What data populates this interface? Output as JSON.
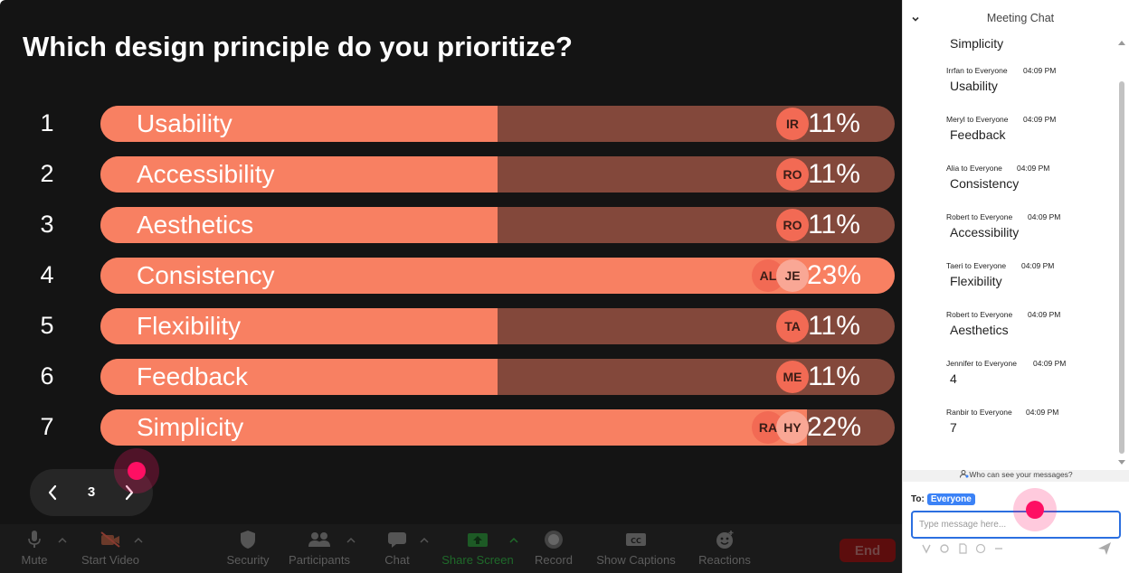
{
  "poll": {
    "question": "Which design principle do you prioritize?",
    "options": [
      {
        "number": "1",
        "label": "Usability",
        "percent": "11%",
        "fill_fraction": 0.5,
        "voters": [
          {
            "initials": "IR",
            "style": "solid"
          }
        ]
      },
      {
        "number": "2",
        "label": "Accessibility",
        "percent": "11%",
        "fill_fraction": 0.5,
        "voters": [
          {
            "initials": "RO",
            "style": "solid"
          }
        ]
      },
      {
        "number": "3",
        "label": "Aesthetics",
        "percent": "11%",
        "fill_fraction": 0.5,
        "voters": [
          {
            "initials": "RO",
            "style": "solid"
          }
        ]
      },
      {
        "number": "4",
        "label": "Consistency",
        "percent": "23%",
        "fill_fraction": 1.0,
        "voters": [
          {
            "initials": "AL",
            "style": "solid"
          },
          {
            "initials": "JE",
            "style": "light"
          }
        ]
      },
      {
        "number": "5",
        "label": "Flexibility",
        "percent": "11%",
        "fill_fraction": 0.5,
        "voters": [
          {
            "initials": "TA",
            "style": "solid"
          }
        ]
      },
      {
        "number": "6",
        "label": "Feedback",
        "percent": "11%",
        "fill_fraction": 0.5,
        "voters": [
          {
            "initials": "ME",
            "style": "solid"
          }
        ]
      },
      {
        "number": "7",
        "label": "Simplicity",
        "percent": "22%",
        "fill_fraction": 0.89,
        "voters": [
          {
            "initials": "RA",
            "style": "solid"
          },
          {
            "initials": "HY",
            "style": "light"
          }
        ]
      }
    ]
  },
  "pager": {
    "page": "3"
  },
  "toolbar": {
    "items": [
      {
        "name": "mute",
        "label": "Mute",
        "icon": "microphone-icon",
        "caret": true
      },
      {
        "name": "start-video",
        "label": "Start Video",
        "icon": "video-off-icon",
        "caret": true
      },
      {
        "name": "security",
        "label": "Security",
        "icon": "shield-icon",
        "caret": false
      },
      {
        "name": "participants",
        "label": "Participants",
        "icon": "people-icon",
        "caret": true
      },
      {
        "name": "chat",
        "label": "Chat",
        "icon": "chat-bubble-icon",
        "caret": true
      },
      {
        "name": "share-screen",
        "label": "Share Screen",
        "icon": "share-screen-icon",
        "caret": true
      },
      {
        "name": "record",
        "label": "Record",
        "icon": "record-icon",
        "caret": false
      },
      {
        "name": "show-captions",
        "label": "Show Captions",
        "icon": "captions-icon",
        "caret": false
      },
      {
        "name": "reactions",
        "label": "Reactions",
        "icon": "emoji-icon",
        "caret": false
      }
    ],
    "end_label": "End"
  },
  "chat": {
    "title": "Meeting Chat",
    "messages": [
      {
        "sender": "",
        "time": "",
        "text": "Simplicity"
      },
      {
        "sender": "Irrfan to Everyone",
        "time": "04:09 PM",
        "text": "Usability"
      },
      {
        "sender": "Meryl to Everyone",
        "time": "04:09 PM",
        "text": "Feedback"
      },
      {
        "sender": "Alia to Everyone",
        "time": "04:09 PM",
        "text": "Consistency"
      },
      {
        "sender": "Robert to Everyone",
        "time": "04:09 PM",
        "text": "Accessibility"
      },
      {
        "sender": "Taeri to Everyone",
        "time": "04:09 PM",
        "text": "Flexibility"
      },
      {
        "sender": "Robert to Everyone",
        "time": "04:09 PM",
        "text": "Aesthetics"
      },
      {
        "sender": "Jennifer to Everyone",
        "time": "04:09 PM",
        "text": "4"
      },
      {
        "sender": "Ranbir to Everyone",
        "time": "04:09 PM",
        "text": "7"
      }
    ],
    "who_can_see": "Who can see your messages?",
    "to_label": "To:",
    "recipient": "Everyone",
    "input_placeholder": "Type message here..."
  },
  "colors": {
    "bar_fill": "#f88062",
    "bar_track": "#83483b",
    "accent_blue": "#3b82f6",
    "cursor_pink": "#fe0f63",
    "end_red": "#5c0d0d"
  }
}
